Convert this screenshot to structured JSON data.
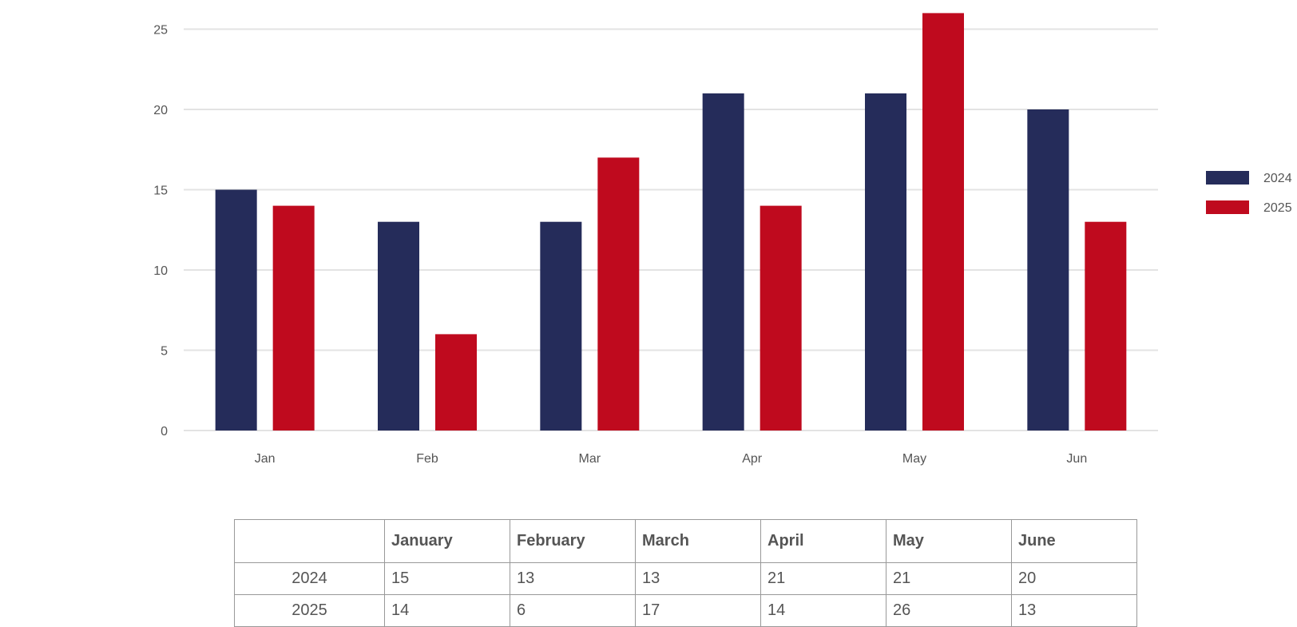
{
  "chart_data": {
    "type": "bar",
    "categories": [
      "Jan",
      "Feb",
      "Mar",
      "Apr",
      "May",
      "Jun"
    ],
    "series": [
      {
        "name": "2024",
        "color": "#252C5A",
        "values": [
          15,
          13,
          13,
          21,
          21,
          20
        ]
      },
      {
        "name": "2025",
        "color": "#BF0A1E",
        "values": [
          14,
          6,
          17,
          14,
          26,
          13
        ]
      }
    ],
    "yticks": [
      0,
      5,
      10,
      15,
      20,
      25
    ],
    "ylim": [
      0,
      26
    ],
    "grid": true,
    "legend": "right",
    "title": "",
    "xlabel": "",
    "ylabel": ""
  },
  "table": {
    "corner": "",
    "headers": [
      "January",
      "February",
      "March",
      "April",
      "May",
      "June"
    ],
    "rows": [
      {
        "label": "2024",
        "values": [
          "15",
          "13",
          "13",
          "21",
          "21",
          "20"
        ]
      },
      {
        "label": "2025",
        "values": [
          "14",
          "6",
          "17",
          "14",
          "26",
          "13"
        ]
      }
    ]
  }
}
